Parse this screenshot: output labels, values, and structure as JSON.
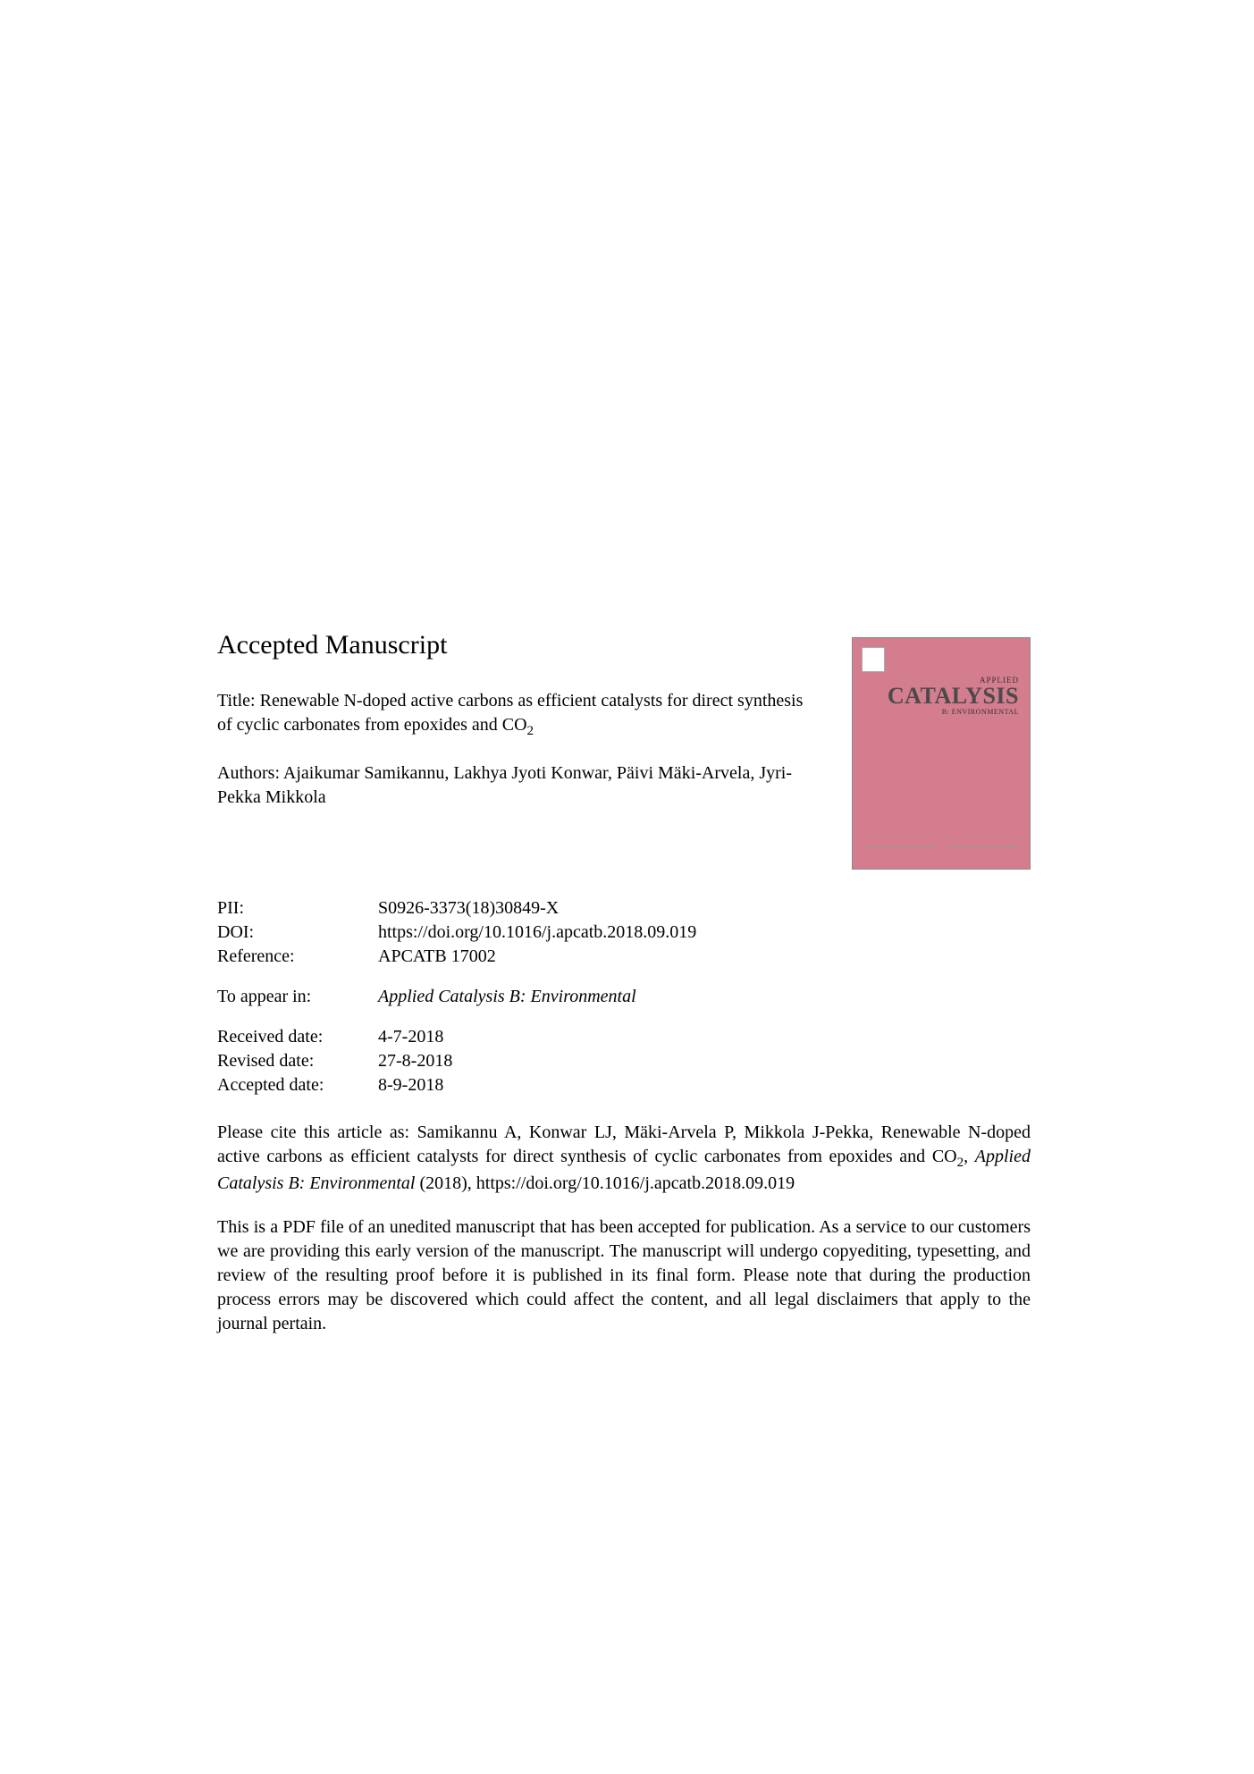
{
  "heading": "Accepted Manuscript",
  "title_prefix": "Title: ",
  "title_text": "Renewable N-doped active carbons as efficient catalysts for direct synthesis of cyclic carbonates from epoxides and CO",
  "title_sub": "2",
  "authors_prefix": "Authors: ",
  "authors_text": "Ajaikumar Samikannu, Lakhya Jyoti Konwar, Päivi Mäki-Arvela, Jyri-Pekka Mikkola",
  "meta": {
    "pii_label": "PII:",
    "pii_value": "S0926-3373(18)30849-X",
    "doi_label": "DOI:",
    "doi_value": "https://doi.org/10.1016/j.apcatb.2018.09.019",
    "ref_label": "Reference:",
    "ref_value": "APCATB 17002"
  },
  "appear_label": "To appear in:",
  "appear_value": "Applied Catalysis B: Environmental",
  "dates": {
    "received_label": "Received date:",
    "received_value": "4-7-2018",
    "revised_label": "Revised date:",
    "revised_value": "27-8-2018",
    "accepted_label": "Accepted date:",
    "accepted_value": "8-9-2018"
  },
  "citation_pre": "Please cite this article as: Samikannu A, Konwar LJ, Mäki-Arvela P, Mikkola J-Pekka, Renewable N-doped active carbons as efficient catalysts for direct synthesis of cyclic carbonates from epoxides and CO",
  "citation_sub": "2",
  "citation_mid": ", ",
  "citation_journal": "Applied Catalysis B: Environmental",
  "citation_post": " (2018), https://doi.org/10.1016/j.apcatb.2018.09.019",
  "disclaimer": "This is a PDF file of an unedited manuscript that has been accepted for publication. As a service to our customers we are providing this early version of the manuscript. The manuscript will undergo copyediting, typesetting, and review of the resulting proof before it is published in its final form. Please note that during the production process errors may be discovered which could affect the content, and all legal disclaimers that apply to the journal pertain.",
  "cover": {
    "applied": "APPLIED",
    "catalysis": "CATALYSIS",
    "sub": "B: ENVIRONMENTAL",
    "background_color": "#d47d8e"
  }
}
